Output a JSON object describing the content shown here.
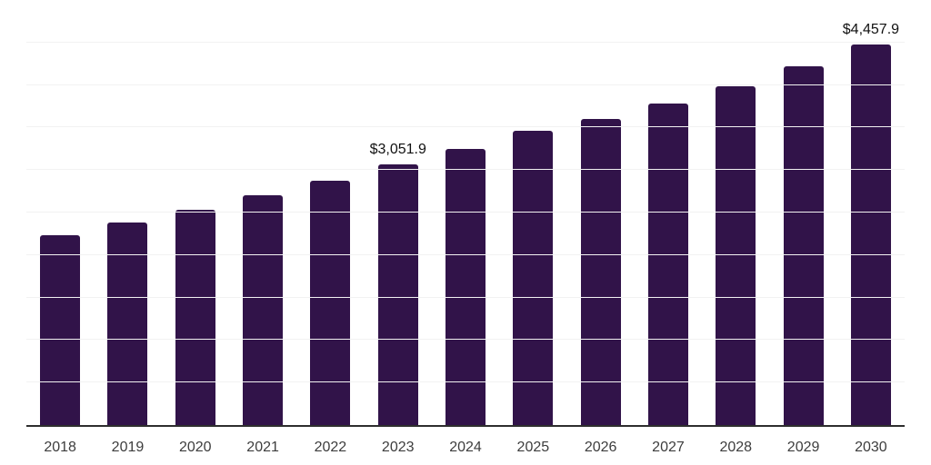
{
  "chart_data": {
    "type": "bar",
    "title": "",
    "xlabel": "",
    "ylabel": "",
    "categories": [
      "2018",
      "2019",
      "2020",
      "2021",
      "2022",
      "2023",
      "2024",
      "2025",
      "2026",
      "2027",
      "2028",
      "2029",
      "2030"
    ],
    "values": [
      2225.0,
      2375.0,
      2525.0,
      2695.0,
      2860.0,
      3051.9,
      3235.0,
      3445.0,
      3585.0,
      3765.0,
      3970.0,
      4205.0,
      4457.9
    ],
    "ylim": [
      0,
      5000
    ],
    "gridline_step": 500,
    "grid": "horizontal",
    "legend": "none",
    "annotations": [
      {
        "category": "2023",
        "text": "$3,051.9"
      },
      {
        "category": "2030",
        "text": "$4,457.9"
      }
    ],
    "colors": {
      "bar": "#311349",
      "gridline": "#f2f2f2",
      "axis_line": "#2e2e2e",
      "tick_label": "#3d3d3d",
      "value_label": "#111111",
      "background": "#ffffff"
    }
  }
}
